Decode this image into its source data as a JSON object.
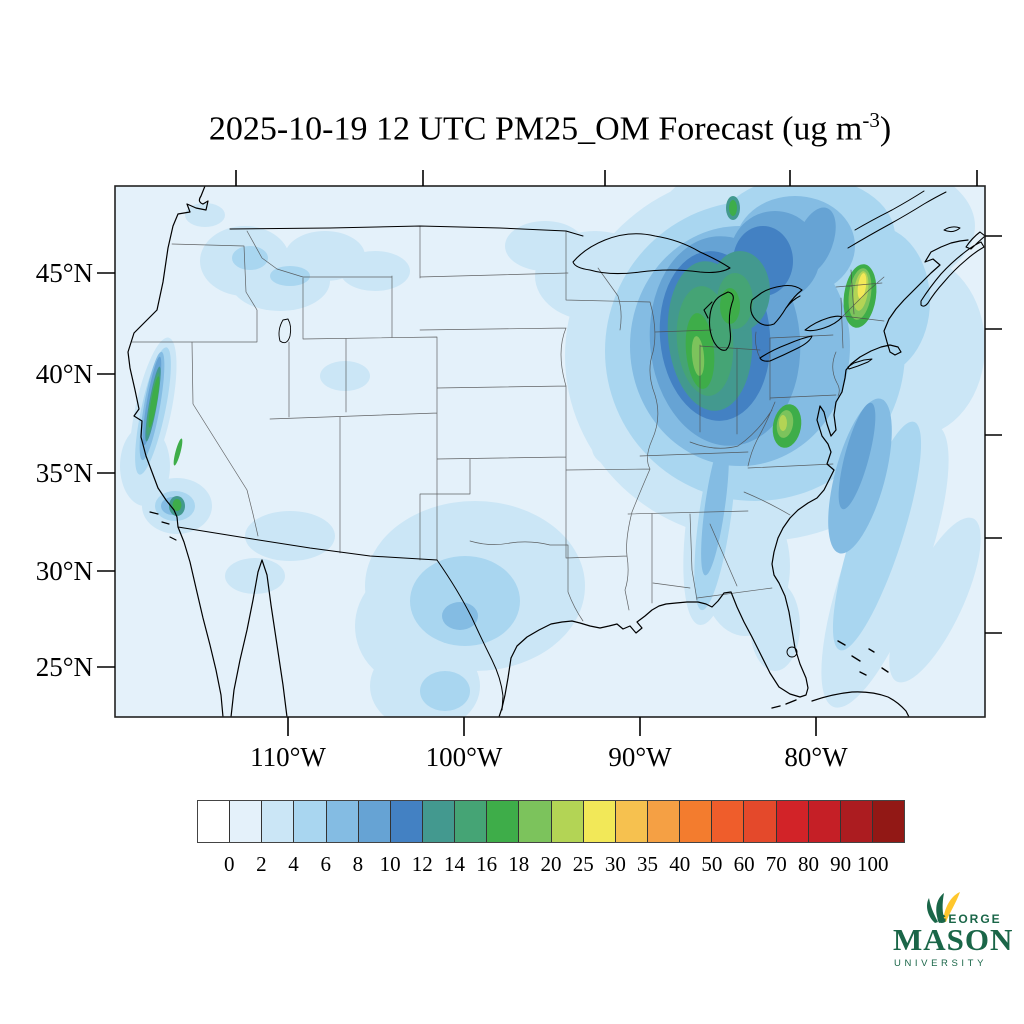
{
  "title": {
    "prefix": "2025-10-19 12 UTC PM25_OM Forecast (ug m",
    "exponent": "-3",
    "suffix": ")"
  },
  "axes": {
    "lat_labels": [
      "45°N",
      "40°N",
      "35°N",
      "30°N",
      "25°N"
    ],
    "lon_labels": [
      "110°W",
      "100°W",
      "90°W",
      "80°W"
    ]
  },
  "colorbar": {
    "labels": [
      "0",
      "2",
      "4",
      "6",
      "8",
      "10",
      "12",
      "14",
      "16",
      "18",
      "20",
      "25",
      "30",
      "35",
      "40",
      "50",
      "60",
      "70",
      "80",
      "90",
      "100"
    ],
    "colors": [
      "#FFFFFF",
      "#E4F1FA",
      "#CBE6F6",
      "#A9D6F0",
      "#84BCE3",
      "#66A3D4",
      "#4381C3",
      "#43998F",
      "#45A475",
      "#3EAD49",
      "#7CC35C",
      "#B3D455",
      "#F2E858",
      "#F6C14F",
      "#F5A044",
      "#F37C2E",
      "#EF5D2B",
      "#E4492B",
      "#D22328",
      "#C51F26",
      "#AC1C20",
      "#921815"
    ]
  },
  "map": {
    "background_level_color": "#E4F1FA",
    "coast_color": "#000000",
    "state_line_color": "#4a4a4a",
    "frame_color": "#222222"
  },
  "logo": {
    "george": "GEORGE",
    "mason": "MASON",
    "university": "UNIVERSITY",
    "green": "#1A6648",
    "gold": "#FFC72C"
  },
  "chart_data": {
    "type": "heatmap",
    "subtype": "filled_contour_forecast_map",
    "title": "2025-10-19 12 UTC PM25_OM Forecast (ug m-3)",
    "variable": "PM25_OM",
    "valid_time": "2025-10-19 12 UTC",
    "units": "ug m-3",
    "levels": [
      0,
      2,
      4,
      6,
      8,
      10,
      12,
      14,
      16,
      18,
      20,
      25,
      30,
      35,
      40,
      50,
      60,
      70,
      80,
      90,
      100
    ],
    "lat_tick_values": [
      45,
      40,
      35,
      30,
      25
    ],
    "lon_tick_values": [
      -110,
      -100,
      -90,
      -80
    ],
    "region": "Continental United States with southern Canada, northern Mexico, Cuba and Bahamas",
    "hotspots": [
      {
        "region": "California Central Valley (Sacramento Valley)",
        "approx_value_range": "16-20"
      },
      {
        "region": "San Joaquin Valley",
        "approx_value_range": "16-18"
      },
      {
        "region": "Los Angeles basin",
        "approx_value_range": "16-18"
      },
      {
        "region": "Ohio Valley / western Pennsylvania",
        "approx_value_range": "12-18"
      },
      {
        "region": "West Virginia",
        "approx_value_range": "20-25"
      },
      {
        "region": "New Hampshire / western Maine",
        "approx_value_range": "25-30"
      },
      {
        "region": "Great Lakes to Northeast broad plume",
        "approx_value_range": "6-14"
      },
      {
        "region": "Central Texas",
        "approx_value_range": "2-6"
      },
      {
        "region": "Atlantic offshore plume (Mid-Atlantic)",
        "approx_value_range": "4-8"
      },
      {
        "region": "Pacific Northwest / northern Rockies patches",
        "approx_value_range": "2-6"
      }
    ],
    "background_value_range": "0-2"
  }
}
